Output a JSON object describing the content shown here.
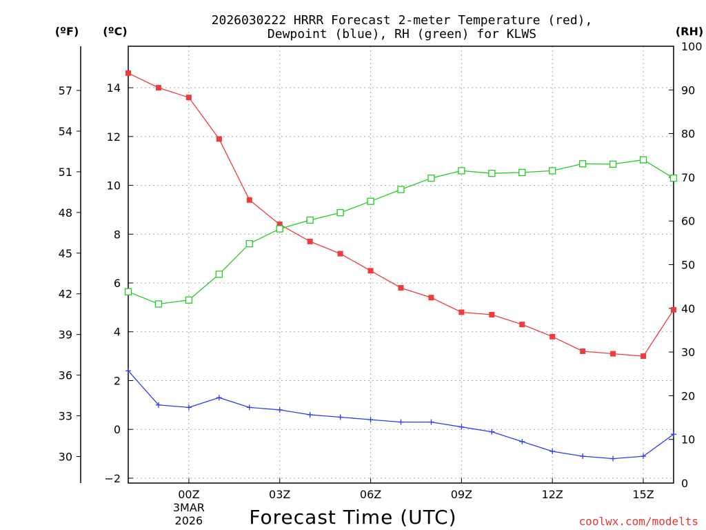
{
  "chart_data": {
    "type": "line",
    "title_line1": "2026030222 HRRR Forecast 2-meter Temperature (red),",
    "title_line2": "Dewpoint (blue), RH (green) for KLWS",
    "xlabel": "Forecast Time (UTC)",
    "credit": "coolwx.com/modelts",
    "units": {
      "fahrenheit": "(ºF)",
      "celsius": "(ºC)",
      "rh": "(RH)"
    },
    "x_hours": [
      -2,
      -1,
      0,
      1,
      2,
      3,
      4,
      5,
      6,
      7,
      8,
      9,
      10,
      11,
      12,
      13,
      14,
      15,
      16
    ],
    "x_ticks": [
      {
        "hour": 0,
        "label": "00Z",
        "date_line1": "3MAR",
        "date_line2": "2026"
      },
      {
        "hour": 3,
        "label": "03Z"
      },
      {
        "hour": 6,
        "label": "06Z"
      },
      {
        "hour": 9,
        "label": "09Z"
      },
      {
        "hour": 12,
        "label": "12Z"
      },
      {
        "hour": 15,
        "label": "15Z"
      }
    ],
    "xlim": [
      -2,
      16
    ],
    "y_celsius": {
      "lim": [
        -2.2,
        15.7
      ],
      "ticks": [
        "-2",
        "0",
        "2",
        "4",
        "6",
        "8",
        "10",
        "12",
        "14"
      ]
    },
    "y_fahrenheit": {
      "ticks": [
        "30",
        "33",
        "36",
        "39",
        "42",
        "45",
        "48",
        "51",
        "54",
        "57"
      ]
    },
    "y_rh": {
      "lim": [
        0,
        100
      ],
      "ticks": [
        "0",
        "10",
        "20",
        "30",
        "40",
        "50",
        "60",
        "70",
        "80",
        "90",
        "100"
      ]
    },
    "series": [
      {
        "name": "Temperature",
        "color": "#ee3b3b",
        "marker": "filled-square",
        "axis": "celsius",
        "values": [
          14.6,
          14.0,
          13.6,
          11.9,
          9.4,
          8.4,
          7.7,
          7.2,
          6.5,
          5.8,
          5.4,
          4.8,
          4.7,
          4.3,
          3.8,
          3.2,
          3.1,
          3.0,
          4.9
        ]
      },
      {
        "name": "Dewpoint",
        "color": "#2b3cf0",
        "marker": "plus",
        "axis": "celsius",
        "values": [
          2.4,
          1.0,
          0.9,
          1.3,
          0.9,
          0.8,
          0.6,
          0.5,
          0.4,
          0.3,
          0.3,
          0.1,
          -0.1,
          -0.5,
          -0.9,
          -1.1,
          -1.2,
          -1.1,
          -0.2
        ]
      },
      {
        "name": "RH",
        "color": "#22cc22",
        "marker": "open-square",
        "axis": "rh",
        "values": [
          43.8,
          41.0,
          41.9,
          47.8,
          54.8,
          58.2,
          60.2,
          61.9,
          64.5,
          67.2,
          69.8,
          71.5,
          70.9,
          71.1,
          71.5,
          73.1,
          73.0,
          74.0,
          69.8
        ]
      }
    ]
  }
}
